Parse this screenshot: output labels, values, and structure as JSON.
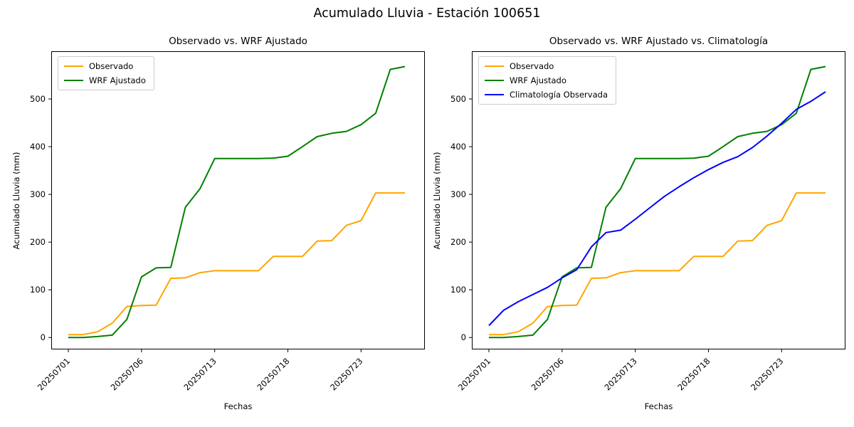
{
  "figure": {
    "title": "Acumulado Lluvia - Estación 100651"
  },
  "chart_data": [
    {
      "type": "line",
      "title": "Observado vs. WRF Ajustado",
      "xlabel": "Fechas",
      "ylabel": "Acumulado Lluvia (mm)",
      "x_tick_labels": [
        "20250701",
        "20250706",
        "20250713",
        "20250718",
        "20250723"
      ],
      "x_tick_indices": [
        0,
        5,
        10,
        15,
        20
      ],
      "x_tick_rotation": 45,
      "y_ticks": [
        0,
        100,
        200,
        300,
        400,
        500
      ],
      "ylim": [
        -25,
        600
      ],
      "grid": false,
      "legend_position": "upper-left",
      "legend": [
        "Observado",
        "WRF Ajustado"
      ],
      "series": [
        {
          "name": "Observado",
          "color": "#FFA500",
          "values": [
            6,
            6,
            12,
            30,
            65,
            67,
            68,
            124,
            125,
            136,
            140,
            140,
            140,
            140,
            170,
            170,
            170,
            202,
            203,
            235,
            245,
            303,
            303,
            303
          ]
        },
        {
          "name": "WRF Ajustado",
          "color": "#008000",
          "values": [
            0,
            0,
            2,
            5,
            38,
            127,
            146,
            147,
            273,
            312,
            375,
            375,
            375,
            375,
            376,
            380,
            400,
            421,
            428,
            432,
            446,
            470,
            562,
            568
          ]
        }
      ]
    },
    {
      "type": "line",
      "title": "Observado vs. WRF Ajustado vs. Climatología",
      "xlabel": "Fechas",
      "ylabel": "Acumulado Lluvia (mm)",
      "x_tick_labels": [
        "20250701",
        "20250706",
        "20250713",
        "20250718",
        "20250723"
      ],
      "x_tick_indices": [
        0,
        5,
        10,
        15,
        20
      ],
      "x_tick_rotation": 45,
      "y_ticks": [
        0,
        100,
        200,
        300,
        400,
        500
      ],
      "ylim": [
        -25,
        600
      ],
      "grid": false,
      "legend_position": "upper-left",
      "legend": [
        "Observado",
        "WRF Ajustado",
        "Climatología Observada"
      ],
      "series": [
        {
          "name": "Observado",
          "color": "#FFA500",
          "values": [
            6,
            6,
            12,
            30,
            65,
            67,
            68,
            124,
            125,
            136,
            140,
            140,
            140,
            140,
            170,
            170,
            170,
            202,
            203,
            235,
            245,
            303,
            303,
            303
          ]
        },
        {
          "name": "WRF Ajustado",
          "color": "#008000",
          "values": [
            0,
            0,
            2,
            5,
            38,
            127,
            146,
            147,
            273,
            312,
            375,
            375,
            375,
            375,
            376,
            380,
            400,
            421,
            428,
            432,
            446,
            470,
            562,
            568
          ]
        },
        {
          "name": "Climatología Observada",
          "color": "#0000FF",
          "values": [
            25,
            57,
            75,
            90,
            105,
            125,
            142,
            190,
            220,
            225,
            248,
            272,
            296,
            316,
            335,
            352,
            367,
            379,
            398,
            422,
            449,
            478,
            495,
            515
          ]
        }
      ]
    }
  ]
}
